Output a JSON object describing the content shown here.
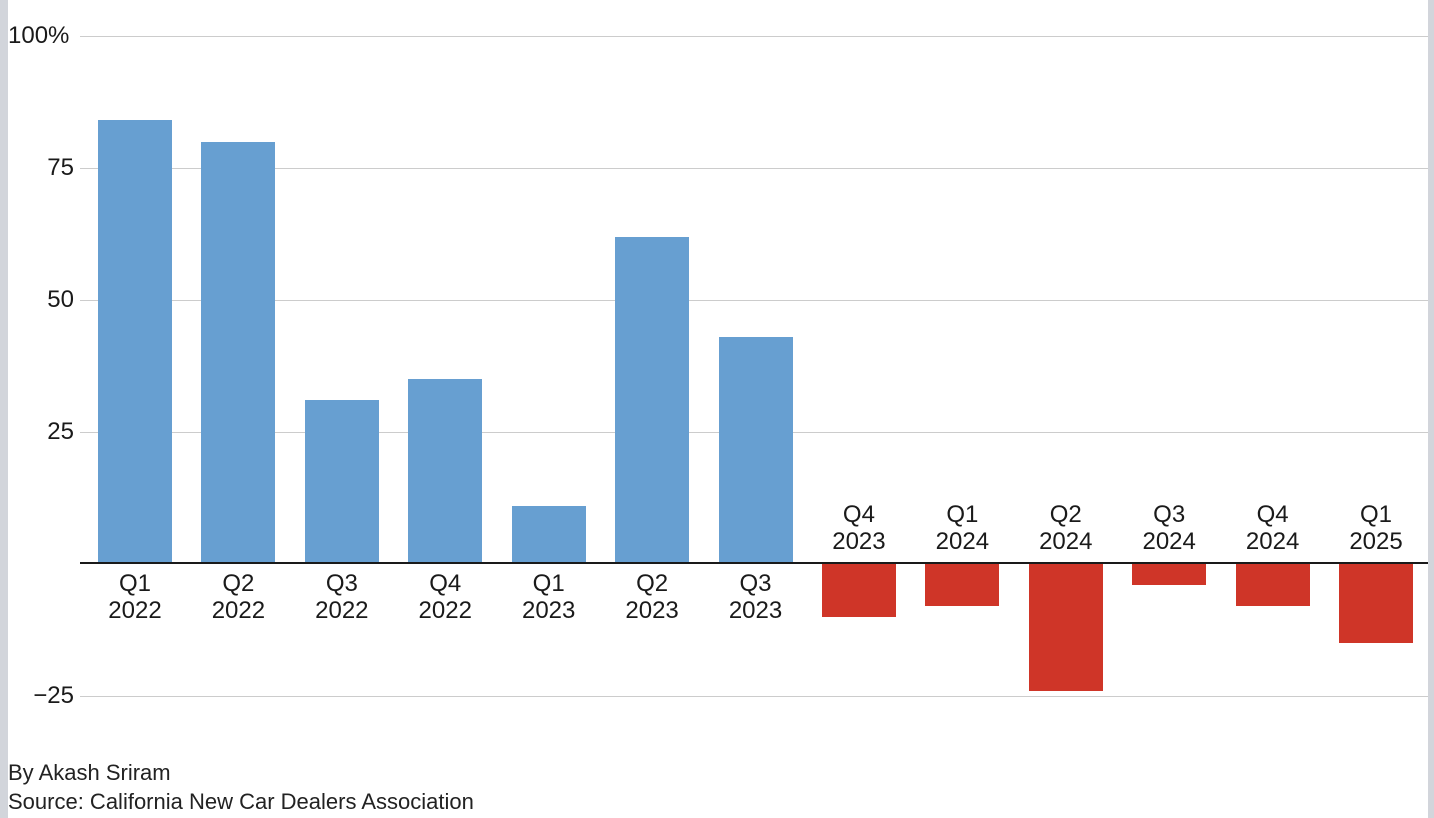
{
  "chart_data": {
    "type": "bar",
    "categories": [
      {
        "quarter": "Q1",
        "year": "2022"
      },
      {
        "quarter": "Q2",
        "year": "2022"
      },
      {
        "quarter": "Q3",
        "year": "2022"
      },
      {
        "quarter": "Q4",
        "year": "2022"
      },
      {
        "quarter": "Q1",
        "year": "2023"
      },
      {
        "quarter": "Q2",
        "year": "2023"
      },
      {
        "quarter": "Q3",
        "year": "2023"
      },
      {
        "quarter": "Q4",
        "year": "2023"
      },
      {
        "quarter": "Q1",
        "year": "2024"
      },
      {
        "quarter": "Q2",
        "year": "2024"
      },
      {
        "quarter": "Q3",
        "year": "2024"
      },
      {
        "quarter": "Q4",
        "year": "2024"
      },
      {
        "quarter": "Q1",
        "year": "2025"
      }
    ],
    "values": [
      84,
      80,
      31,
      35,
      11,
      62,
      43,
      -10,
      -8,
      -24,
      -4,
      -8,
      -15
    ],
    "unit": "%",
    "title": "",
    "xlabel": "",
    "ylabel": "",
    "ylim": [
      -25,
      100
    ],
    "grid": true,
    "legend_position": "none",
    "yticks": [
      {
        "value": 100,
        "label": "100%"
      },
      {
        "value": 75,
        "label": "75"
      },
      {
        "value": 50,
        "label": "50"
      },
      {
        "value": 25,
        "label": "25"
      },
      {
        "value": -25,
        "label": "−25"
      }
    ],
    "colors": {
      "positive_bar": "#679fd1",
      "negative_bar": "#cf3528",
      "gridline": "#cccccc",
      "zero_axis": "#1a1a1a",
      "text": "#1a1a1a"
    }
  },
  "footer": {
    "byline": "By Akash Sriram",
    "source": "Source: California New Car Dealers Association"
  }
}
